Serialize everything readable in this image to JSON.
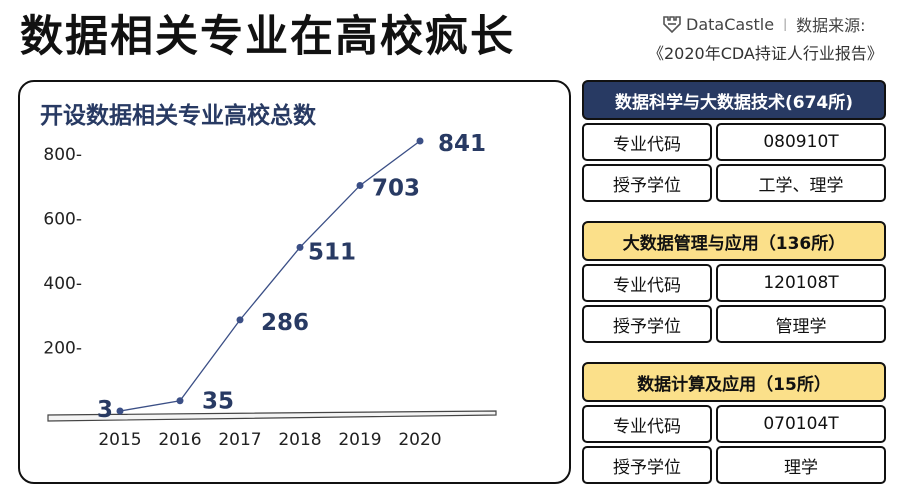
{
  "header": {
    "title": "数据相关专业在高校疯长",
    "brand_name": "DataCastle",
    "source_label": "数据来源:",
    "source_text": "《2020年CDA持证人行业报告》"
  },
  "colors": {
    "navy": "#283a63",
    "yellow": "#fbe08a",
    "line": "#3b4f86"
  },
  "chart_data": {
    "type": "line",
    "title": "开设数据相关专业高校总数",
    "x": [
      "2015",
      "2016",
      "2017",
      "2018",
      "2019",
      "2020"
    ],
    "values": [
      3,
      35,
      286,
      511,
      703,
      841
    ],
    "data_labels": [
      "3",
      "35",
      "286",
      "511",
      "703",
      "841"
    ],
    "ylim": [
      0,
      900
    ],
    "yticks": [
      200,
      400,
      600,
      800
    ],
    "ytick_labels": [
      "200-",
      "400-",
      "600-",
      "800-"
    ],
    "xlabel": "",
    "ylabel": "",
    "grid": false
  },
  "majors": [
    {
      "title": "数据科学与大数据技术(674所)",
      "style": "dark",
      "rows": [
        {
          "label": "专业代码",
          "value": "080910T"
        },
        {
          "label": "授予学位",
          "value": "工学、理学"
        }
      ]
    },
    {
      "title": "大数据管理与应用（136所）",
      "style": "yellow",
      "rows": [
        {
          "label": "专业代码",
          "value": "120108T"
        },
        {
          "label": "授予学位",
          "value": "管理学"
        }
      ]
    },
    {
      "title": "数据计算及应用（15所）",
      "style": "yellow",
      "rows": [
        {
          "label": "专业代码",
          "value": "070104T"
        },
        {
          "label": "授予学位",
          "value": "理学"
        }
      ]
    }
  ]
}
